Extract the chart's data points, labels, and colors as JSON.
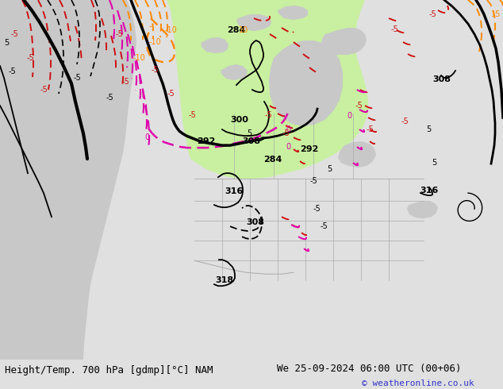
{
  "title_left": "Height/Temp. 700 hPa [gdmp][°C] NAM",
  "title_right": "We 25-09-2024 06:00 UTC (00+06)",
  "copyright": "© weatheronline.co.uk",
  "bg_color": "#e0e0e0",
  "land_green": "#c8f0a0",
  "land_gray": "#c8c8c8",
  "ocean_color": "#e0e0e0",
  "bottom_bar_color": "#f0f0f0",
  "title_font_size": 9,
  "copyright_color": "#3333cc",
  "figsize": [
    6.34,
    4.9
  ],
  "dpi": 100,
  "black_contours": {
    "lw_thick": 2.5,
    "lw_thin": 1.3
  }
}
